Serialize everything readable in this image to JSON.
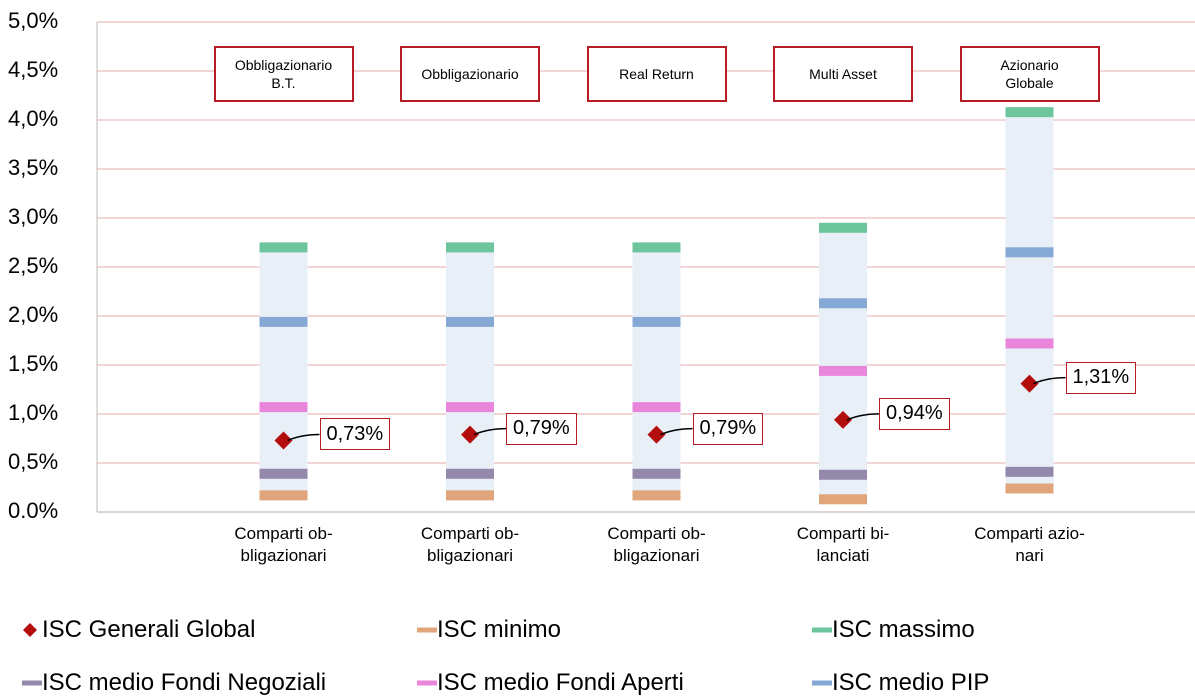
{
  "chart_data": {
    "type": "range-bar",
    "categories": [
      "Comparti ob-\nbligazionari",
      "Comparti ob-\nbligazionari",
      "Comparti ob-\nbligazionari",
      "Comparti bi-\nlanciati",
      "Comparti azio-\nnari"
    ],
    "annotations": [
      "Obbligazionario\nB.T.",
      "Obbligazionario",
      "Real Return",
      "Multi Asset",
      "Azionario\nGlobale"
    ],
    "series": [
      {
        "name": "ISC Generali Global",
        "color": "#b30d0d",
        "marker": "diamond",
        "values": [
          0.73,
          0.79,
          0.79,
          0.94,
          1.31
        ],
        "value_labels": [
          "0,73%",
          "0,79%",
          "0,79%",
          "0,94%",
          "1,31%"
        ]
      },
      {
        "name": "ISC minimo",
        "color": "#e0a57a",
        "marker": "dash",
        "values": [
          0.17,
          0.17,
          0.17,
          0.13,
          0.24
        ]
      },
      {
        "name": "ISC massimo",
        "color": "#6cc59c",
        "marker": "dash",
        "values": [
          2.7,
          2.7,
          2.7,
          2.9,
          4.08
        ]
      },
      {
        "name": "ISC medio Fondi Negoziali",
        "color": "#9488ab",
        "marker": "dash",
        "values": [
          0.39,
          0.39,
          0.39,
          0.38,
          0.41
        ]
      },
      {
        "name": "ISC medio Fondi Aperti",
        "color": "#ea85dc",
        "marker": "dash",
        "values": [
          1.07,
          1.07,
          1.07,
          1.44,
          1.72
        ]
      },
      {
        "name": "ISC medio PIP",
        "color": "#86a8d5",
        "marker": "dash",
        "values": [
          1.94,
          1.94,
          1.94,
          2.13,
          2.65
        ]
      }
    ],
    "range_color": "#e9eff7",
    "ylim": [
      0,
      5
    ],
    "yticks": [
      {
        "value": 0,
        "label": "0.0%"
      },
      {
        "value": 0.5,
        "label": "0,5%"
      },
      {
        "value": 1,
        "label": "1,0%"
      },
      {
        "value": 1.5,
        "label": "1,5%"
      },
      {
        "value": 2,
        "label": "2,0%"
      },
      {
        "value": 2.5,
        "label": "2,5%"
      },
      {
        "value": 3,
        "label": "3,0%"
      },
      {
        "value": 3.5,
        "label": "3,5%"
      },
      {
        "value": 4,
        "label": "4,0%"
      },
      {
        "value": 4.5,
        "label": "4,5%"
      },
      {
        "value": 5,
        "label": "5,0%"
      }
    ],
    "grid": true
  }
}
